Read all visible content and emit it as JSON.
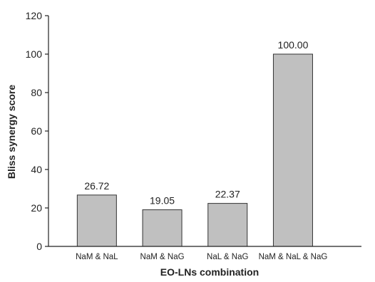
{
  "chart_data": {
    "type": "bar",
    "title": "",
    "xlabel": "EO-LNs combination",
    "ylabel": "Bliss synergy score",
    "categories": [
      "NaM & NaL",
      "NaM & NaG",
      "NaL & NaG",
      "NaM & NaL & NaG"
    ],
    "values": [
      26.72,
      19.05,
      22.37,
      100.0
    ],
    "data_labels": [
      "26.72",
      "19.05",
      "22.37",
      "100.00"
    ],
    "ylim": [
      0,
      120
    ],
    "yticks": [
      0,
      20,
      40,
      60,
      80,
      100,
      120
    ],
    "bar_color": "#c0c0c0",
    "bar_edge_color": "#333333",
    "grid": false,
    "legend": "none"
  }
}
